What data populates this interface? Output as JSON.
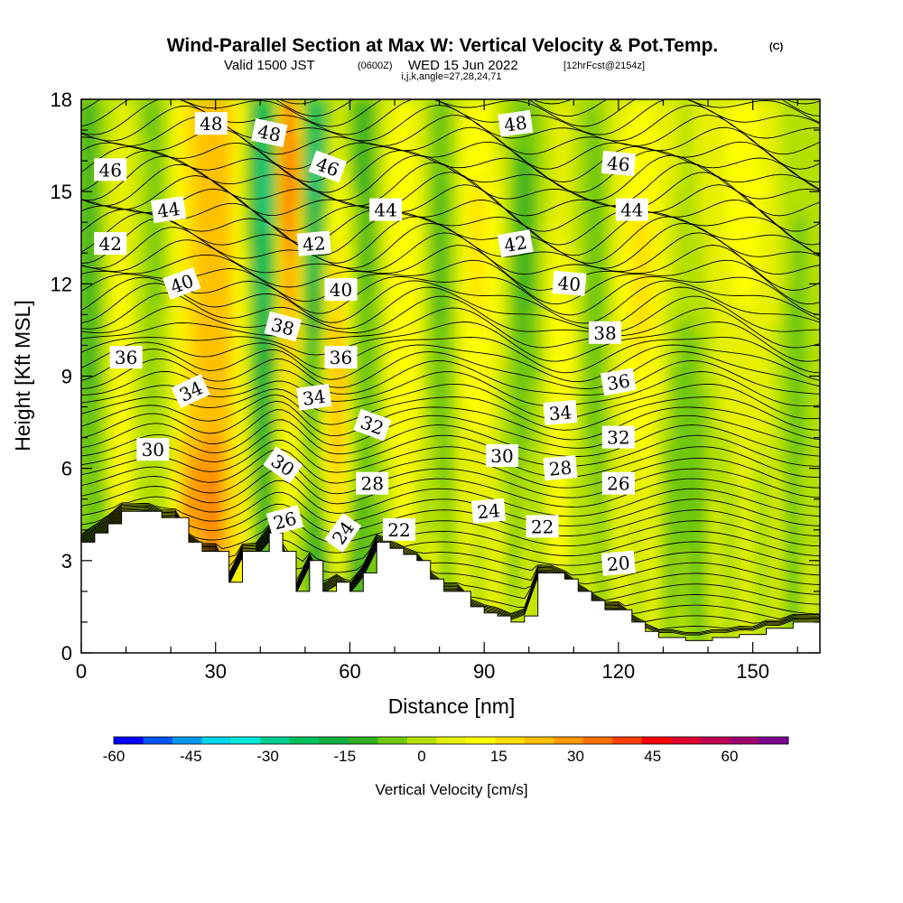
{
  "header": {
    "title": "Wind-Parallel Section at Max W: Vertical Velocity & Pot.Temp.",
    "copyright": "(C)",
    "valid_prefix": "Valid 1500 JST",
    "valid_utc": "(0600Z)",
    "valid_date": "WED 15 Jun 2022",
    "forecast": "[12hrFcst@2154z]",
    "indices": "i,j,k,angle=27,28,24,71"
  },
  "colorbar": {
    "label": "Vertical Velocity [cm/s]",
    "ticks": [
      "-60",
      "-45",
      "-30",
      "-15",
      "0",
      "15",
      "30",
      "45",
      "60"
    ],
    "colors": [
      "#0000ff",
      "#0055f5",
      "#0099f0",
      "#00d5f0",
      "#00e8d8",
      "#00d090",
      "#00c060",
      "#10b040",
      "#30b020",
      "#70c810",
      "#b4e000",
      "#e6f000",
      "#ffff00",
      "#ffe000",
      "#ffc000",
      "#ff9a00",
      "#ff7000",
      "#ff4000",
      "#ff0000",
      "#e00030",
      "#c00050",
      "#a00070",
      "#7a0090"
    ]
  },
  "chart_data": {
    "type": "heatmap",
    "title": "Wind-Parallel Section at Max W: Vertical Velocity & Pot.Temp.",
    "xlabel": "Distance [nm]",
    "ylabel": "Height [Kft MSL]",
    "xlim": [
      0,
      165
    ],
    "ylim": [
      0,
      18
    ],
    "x_ticks": [
      "0",
      "30",
      "60",
      "90",
      "120",
      "150"
    ],
    "y_ticks": [
      "0",
      "3",
      "6",
      "9",
      "12",
      "15",
      "18"
    ],
    "colorbar_range": [
      -60,
      68
    ],
    "colorbar_step": 5.5,
    "contour_variable": "Potential Temperature",
    "contour_labels": [
      {
        "text": "48",
        "x": 29,
        "y": 17.2,
        "angle": 0
      },
      {
        "text": "48",
        "x": 42,
        "y": 16.9,
        "angle": 12
      },
      {
        "text": "46",
        "x": 55,
        "y": 15.8,
        "angle": 20
      },
      {
        "text": "48",
        "x": 97,
        "y": 17.2,
        "angle": -8
      },
      {
        "text": "46",
        "x": 6.5,
        "y": 15.7,
        "angle": 0
      },
      {
        "text": "46",
        "x": 120,
        "y": 15.9,
        "angle": 5
      },
      {
        "text": "44",
        "x": 19.5,
        "y": 14.4,
        "angle": -8
      },
      {
        "text": "44",
        "x": 68,
        "y": 14.4,
        "angle": 0
      },
      {
        "text": "44",
        "x": 123,
        "y": 14.4,
        "angle": 0
      },
      {
        "text": "42",
        "x": 6.5,
        "y": 13.3,
        "angle": 0
      },
      {
        "text": "42",
        "x": 52,
        "y": 13.3,
        "angle": -5
      },
      {
        "text": "42",
        "x": 97,
        "y": 13.3,
        "angle": -10
      },
      {
        "text": "40",
        "x": 22.5,
        "y": 12.0,
        "angle": -20
      },
      {
        "text": "40",
        "x": 58,
        "y": 11.8,
        "angle": 0
      },
      {
        "text": "40",
        "x": 109,
        "y": 12.0,
        "angle": 5
      },
      {
        "text": "38",
        "x": 45,
        "y": 10.6,
        "angle": 15
      },
      {
        "text": "38",
        "x": 117,
        "y": 10.4,
        "angle": 0
      },
      {
        "text": "36",
        "x": 10,
        "y": 9.6,
        "angle": 0
      },
      {
        "text": "36",
        "x": 58,
        "y": 9.6,
        "angle": 0
      },
      {
        "text": "36",
        "x": 120,
        "y": 8.8,
        "angle": -10
      },
      {
        "text": "34",
        "x": 24.5,
        "y": 8.5,
        "angle": -25
      },
      {
        "text": "34",
        "x": 52,
        "y": 8.3,
        "angle": -8
      },
      {
        "text": "34",
        "x": 107,
        "y": 7.8,
        "angle": -5
      },
      {
        "text": "32",
        "x": 65,
        "y": 7.4,
        "angle": 20
      },
      {
        "text": "32",
        "x": 120,
        "y": 7.0,
        "angle": 0
      },
      {
        "text": "30",
        "x": 16,
        "y": 6.6,
        "angle": 0
      },
      {
        "text": "30",
        "x": 45,
        "y": 6.1,
        "angle": 35
      },
      {
        "text": "30",
        "x": 94,
        "y": 6.4,
        "angle": 0
      },
      {
        "text": "28",
        "x": 65,
        "y": 5.5,
        "angle": 0
      },
      {
        "text": "28",
        "x": 107,
        "y": 6.0,
        "angle": -5
      },
      {
        "text": "26",
        "x": 45.5,
        "y": 4.3,
        "angle": -15
      },
      {
        "text": "26",
        "x": 120,
        "y": 5.5,
        "angle": 0
      },
      {
        "text": "24",
        "x": 58.5,
        "y": 3.9,
        "angle": -55
      },
      {
        "text": "24",
        "x": 91,
        "y": 4.6,
        "angle": -5
      },
      {
        "text": "22",
        "x": 71,
        "y": 4.0,
        "angle": 0
      },
      {
        "text": "22",
        "x": 103,
        "y": 4.1,
        "angle": 0
      },
      {
        "text": "20",
        "x": 120,
        "y": 2.9,
        "angle": -5
      }
    ],
    "terrain_top_kft": [
      3.6,
      3.9,
      4.2,
      4.6,
      4.6,
      4.6,
      4.4,
      4.4,
      3.6,
      3.3,
      3.3,
      2.3,
      3.3,
      3.3,
      3.9,
      3.3,
      2.0,
      3.0,
      2.0,
      2.3,
      2.0,
      2.6,
      3.6,
      3.4,
      3.2,
      3.0,
      2.4,
      2.0,
      2.0,
      1.5,
      1.3,
      1.2,
      1.0,
      1.2,
      2.6,
      2.6,
      2.4,
      2.0,
      1.7,
      1.4,
      1.4,
      1.0,
      0.7,
      0.5,
      0.5,
      0.4,
      0.4,
      0.5,
      0.5,
      0.6,
      0.6,
      0.8,
      0.8,
      1.0,
      1.0,
      1.0
    ]
  }
}
